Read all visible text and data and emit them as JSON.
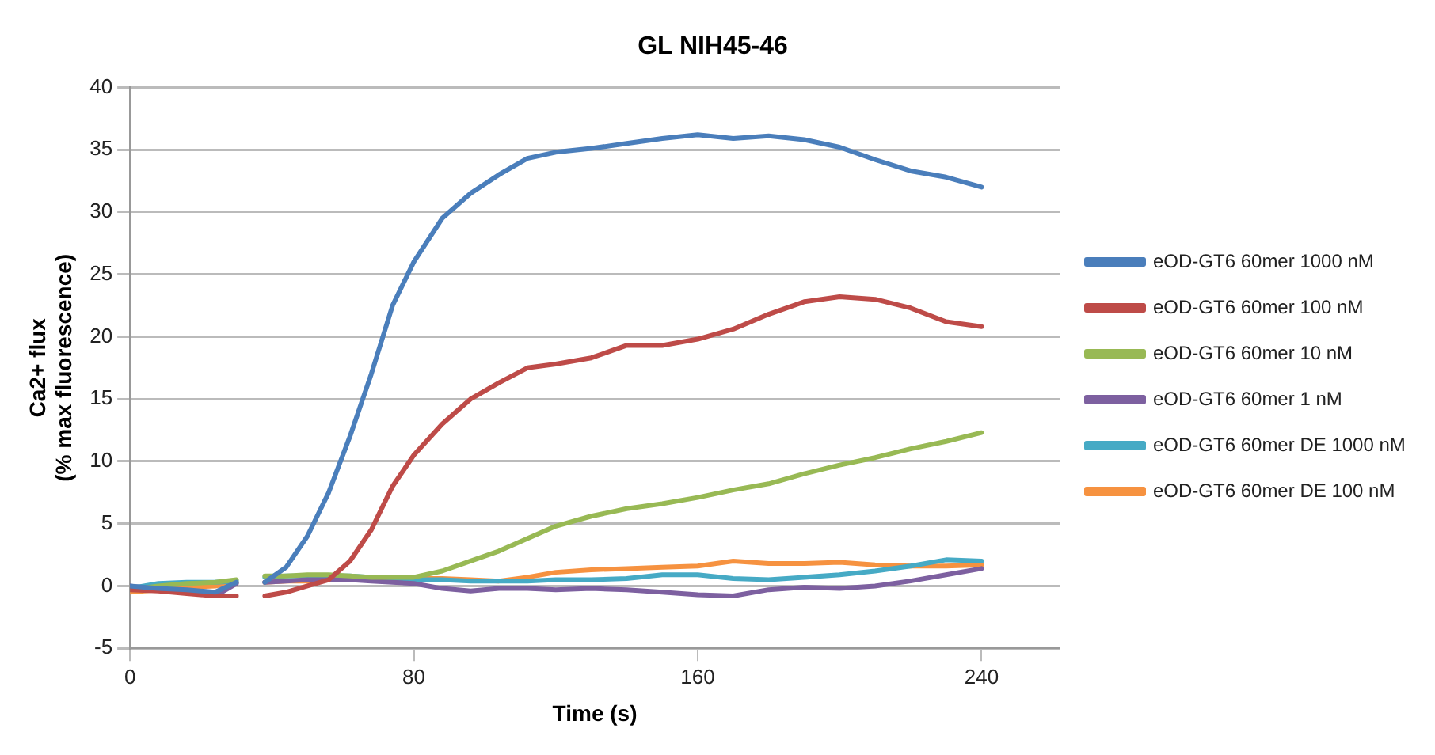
{
  "chart_data": {
    "type": "line",
    "title": "GL NIH45-46",
    "xlabel": "Time (s)",
    "ylabel": "Ca2+ flux\n(% max fluorescence)",
    "x": [
      0,
      8,
      16,
      24,
      30,
      34,
      38,
      44,
      50,
      56,
      62,
      68,
      74,
      80,
      88,
      96,
      104,
      112,
      120,
      130,
      140,
      150,
      160,
      170,
      180,
      190,
      200,
      210,
      220,
      230,
      240
    ],
    "series": [
      {
        "name": "eOD-GT6 60mer 1000 nM",
        "color": "#4a7ebb",
        "values": [
          0,
          -0.2,
          -0.3,
          -0.5,
          0.3,
          null,
          0.3,
          1.5,
          4,
          7.5,
          12,
          17,
          22.5,
          26,
          29.5,
          31.5,
          33,
          34.3,
          34.8,
          35.1,
          35.5,
          35.9,
          36.2,
          35.9,
          36.1,
          35.8,
          35.2,
          34.2,
          33.3,
          32.8,
          32
        ]
      },
      {
        "name": "eOD-GT6 60mer 100 nM",
        "color": "#be4b48",
        "values": [
          -0.3,
          -0.4,
          -0.6,
          -0.8,
          -0.8,
          null,
          -0.8,
          -0.5,
          0,
          0.5,
          2,
          4.5,
          8,
          10.5,
          13,
          15,
          16.3,
          17.5,
          17.8,
          18.3,
          19.3,
          19.3,
          19.8,
          20.6,
          21.8,
          22.8,
          23.2,
          23,
          22.3,
          21.2,
          20.8
        ]
      },
      {
        "name": "eOD-GT6 60mer 10 nM",
        "color": "#98b954",
        "values": [
          -0.3,
          0,
          0.2,
          0.3,
          0.5,
          null,
          0.8,
          0.8,
          0.9,
          0.9,
          0.8,
          0.7,
          0.7,
          0.7,
          1.2,
          2,
          2.8,
          3.8,
          4.8,
          5.6,
          6.2,
          6.6,
          7.1,
          7.7,
          8.2,
          9,
          9.7,
          10.3,
          11,
          11.6,
          12.3
        ]
      },
      {
        "name": "eOD-GT6 60mer 1 nM",
        "color": "#7d60a0",
        "values": [
          0,
          -0.3,
          -0.5,
          -0.8,
          0.2,
          null,
          0.3,
          0.4,
          0.5,
          0.5,
          0.5,
          0.4,
          0.3,
          0.2,
          -0.2,
          -0.4,
          -0.2,
          -0.2,
          -0.3,
          -0.2,
          -0.3,
          -0.5,
          -0.7,
          -0.8,
          -0.3,
          -0.1,
          -0.2,
          0,
          0.4,
          0.9,
          1.4
        ]
      },
      {
        "name": "eOD-GT6 60mer DE 1000 nM",
        "color": "#46aac5",
        "values": [
          -0.2,
          0.2,
          0.3,
          0.3,
          0.4,
          null,
          0.7,
          0.8,
          0.8,
          0.8,
          0.8,
          0.7,
          0.6,
          0.5,
          0.5,
          0.4,
          0.4,
          0.4,
          0.5,
          0.5,
          0.6,
          0.9,
          0.9,
          0.6,
          0.5,
          0.7,
          0.9,
          1.2,
          1.6,
          2.1,
          2
        ]
      },
      {
        "name": "eOD-GT6 60mer DE 100 nM",
        "color": "#f69240",
        "values": [
          -0.5,
          -0.3,
          -0.1,
          0,
          0.3,
          null,
          0.3,
          0.4,
          0.4,
          0.5,
          0.5,
          0.5,
          0.6,
          0.6,
          0.6,
          0.5,
          0.4,
          0.7,
          1.1,
          1.3,
          1.4,
          1.5,
          1.6,
          2,
          1.8,
          1.8,
          1.9,
          1.7,
          1.6,
          1.6,
          1.7
        ]
      }
    ],
    "xlim": [
      0,
      262
    ],
    "xticks": [
      0,
      80,
      160,
      240
    ],
    "ylim": [
      -5,
      40
    ],
    "yticks": [
      -5,
      0,
      5,
      10,
      15,
      20,
      25,
      30,
      35,
      40
    ],
    "grid": "y",
    "legend": "right",
    "marker": "none",
    "line_style": "solid"
  }
}
